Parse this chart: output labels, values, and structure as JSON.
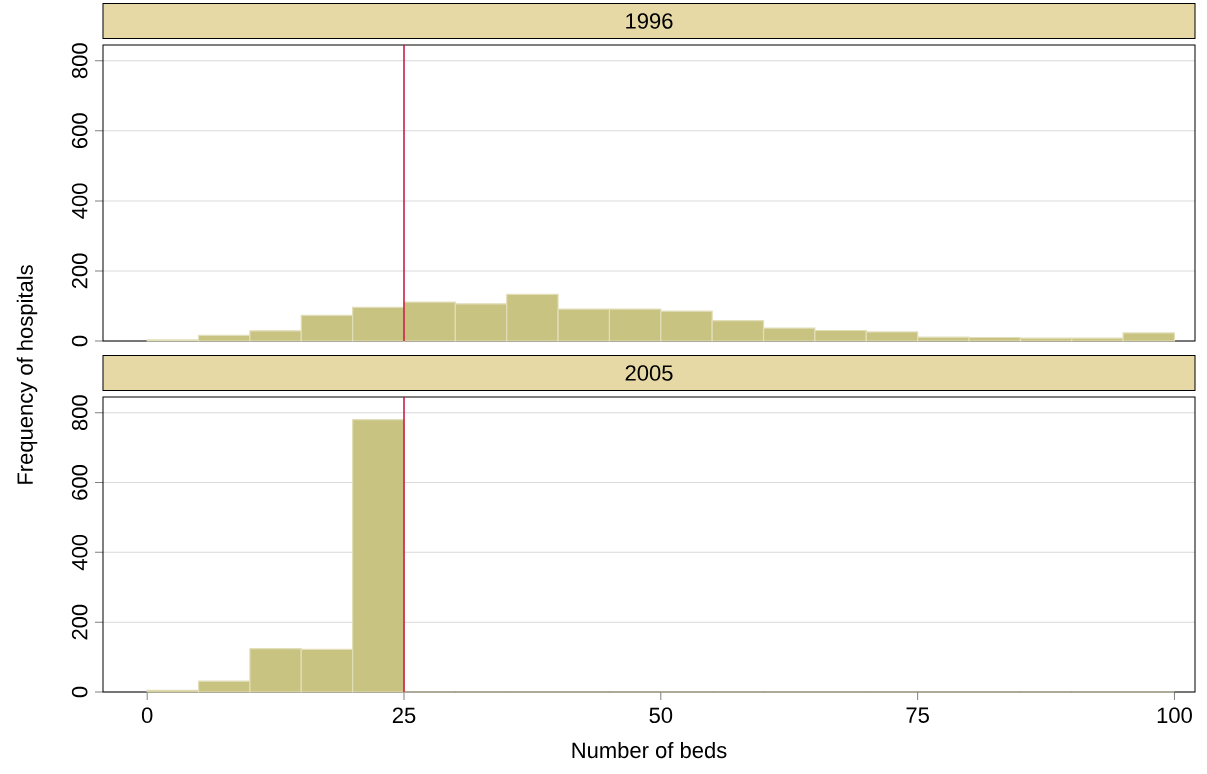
{
  "chart_data": [
    {
      "type": "histogram",
      "title": "1996",
      "ylabel": "Frequency of hospitals",
      "bins": [
        0,
        5,
        10,
        15,
        20,
        25,
        30,
        35,
        40,
        45,
        50,
        55,
        60,
        65,
        70,
        75,
        80,
        85,
        90,
        95,
        100
      ],
      "values": [
        3,
        16,
        29,
        73,
        96,
        111,
        106,
        133,
        91,
        91,
        85,
        58,
        37,
        30,
        26,
        11,
        10,
        8,
        8,
        23
      ],
      "color": "#c9c382",
      "xlim": [
        -4.3,
        102
      ],
      "ylim": [
        0,
        845
      ],
      "yticks": [
        0,
        200,
        400,
        600,
        800
      ],
      "grid": "y",
      "tick_labels": "y",
      "ref_lines": [
        {
          "axis": "x",
          "value": 25,
          "color": "#c8103a"
        }
      ]
    },
    {
      "type": "histogram",
      "title": "2005",
      "xlabel": "Number of beds",
      "bins": [
        0,
        5,
        10,
        15,
        20,
        25,
        30,
        35,
        40,
        45,
        50,
        55,
        60,
        65,
        70,
        75,
        80,
        85,
        90,
        95,
        100
      ],
      "values": [
        5,
        31,
        124,
        122,
        780,
        0,
        0,
        0,
        0,
        0,
        0,
        0,
        0,
        0,
        0,
        0,
        0,
        0,
        0,
        0
      ],
      "color": "#c9c382",
      "xlim": [
        -4.3,
        102
      ],
      "ylim": [
        0,
        845
      ],
      "xticks": [
        0,
        25,
        50,
        75,
        100
      ],
      "yticks": [
        0,
        200,
        400,
        600,
        800
      ],
      "grid": "y",
      "ref_lines": [
        {
          "axis": "x",
          "value": 25,
          "color": "#c8103a"
        }
      ]
    }
  ]
}
